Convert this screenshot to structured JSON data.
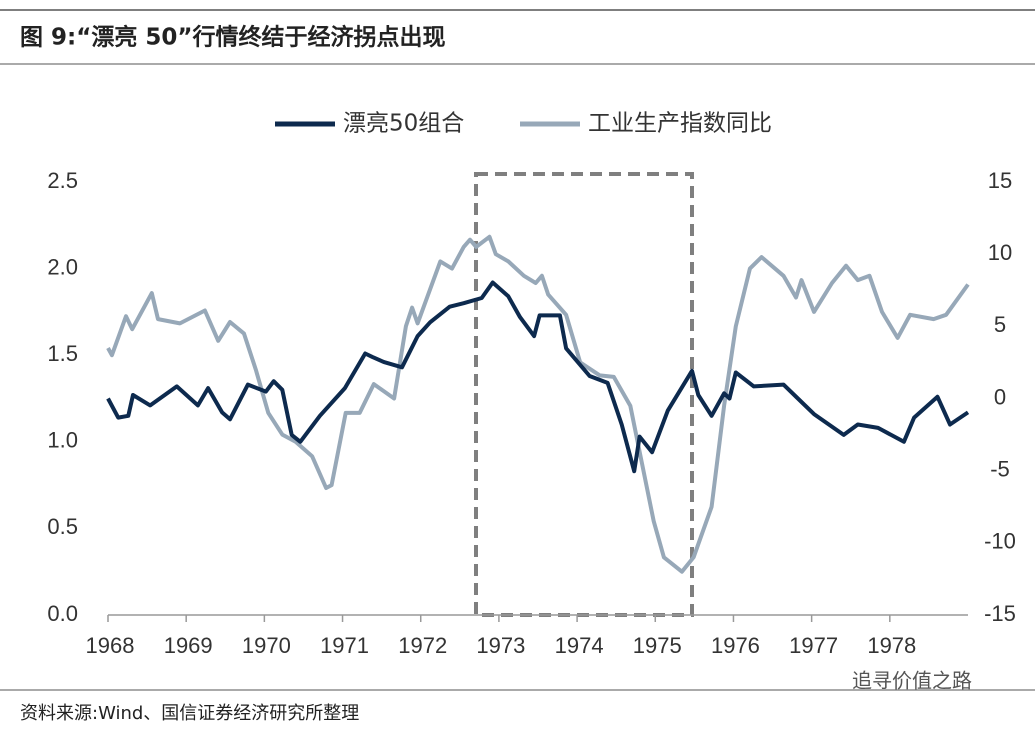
{
  "chart_data": {
    "type": "line",
    "title": "图 9:“漂亮 50”行情终结于经济拐点出现",
    "source": "资料来源:Wind、国信证券经济研究所整理",
    "watermark": "追寻价值之路",
    "xlim": [
      1968,
      1979
    ],
    "xticks": [
      1968,
      1969,
      1970,
      1971,
      1972,
      1973,
      1974,
      1975,
      1976,
      1977,
      1978
    ],
    "ylim": [
      0,
      2.5
    ],
    "yticks": [
      {
        "value": 0,
        "label": "0.0"
      },
      0.5,
      {
        "value": 1,
        "label": "1.0"
      },
      1.5,
      {
        "value": 2,
        "label": "2.0"
      },
      2.5
    ],
    "y2lim": [
      -15,
      15
    ],
    "y2ticks": [
      -15,
      -10,
      -5,
      0,
      5,
      10,
      15
    ],
    "legend": "top",
    "series": [
      {
        "name": "漂亮50组合",
        "color": "#0d2a4e",
        "x": [
          1968.0,
          1968.13,
          1968.26,
          1968.32,
          1968.54,
          1968.88,
          1969.15,
          1969.28,
          1969.46,
          1969.56,
          1969.79,
          1970.02,
          1970.12,
          1970.23,
          1970.35,
          1970.46,
          1970.71,
          1971.03,
          1971.29,
          1971.38,
          1971.53,
          1971.76,
          1971.96,
          1972.12,
          1972.37,
          1972.55,
          1972.78,
          1972.92,
          1973.12,
          1973.27,
          1973.45,
          1973.52,
          1973.78,
          1973.86,
          1974.16,
          1974.39,
          1974.57,
          1974.73,
          1974.8,
          1974.96,
          1975.16,
          1975.47,
          1975.55,
          1975.72,
          1975.88,
          1975.95,
          1976.03,
          1976.26,
          1976.64,
          1976.87,
          1977.03,
          1977.41,
          1977.59,
          1977.85,
          1978.18,
          1978.31,
          1978.61,
          1978.77,
          1979.0
        ],
        "values": [
          1.25,
          1.14,
          1.15,
          1.27,
          1.21,
          1.32,
          1.21,
          1.31,
          1.17,
          1.13,
          1.33,
          1.29,
          1.35,
          1.3,
          1.04,
          1.0,
          1.15,
          1.31,
          1.51,
          1.49,
          1.46,
          1.43,
          1.61,
          1.69,
          1.78,
          1.8,
          1.83,
          1.92,
          1.84,
          1.72,
          1.61,
          1.73,
          1.73,
          1.54,
          1.38,
          1.34,
          1.1,
          0.83,
          1.03,
          0.94,
          1.18,
          1.41,
          1.27,
          1.15,
          1.28,
          1.25,
          1.4,
          1.32,
          1.33,
          1.23,
          1.16,
          1.04,
          1.1,
          1.08,
          1.0,
          1.14,
          1.26,
          1.1,
          1.17
        ]
      },
      {
        "name": "工业生产指数同比",
        "color": "#97a8b8",
        "axis": "y2",
        "x": [
          1968.0,
          1968.05,
          1968.23,
          1968.31,
          1968.56,
          1968.64,
          1968.92,
          1969.24,
          1969.41,
          1969.56,
          1969.74,
          1969.89,
          1970.05,
          1970.23,
          1970.4,
          1970.61,
          1970.79,
          1970.86,
          1971.04,
          1971.22,
          1971.4,
          1971.66,
          1971.81,
          1971.89,
          1971.96,
          1972.25,
          1972.4,
          1972.55,
          1972.63,
          1972.71,
          1972.88,
          1972.96,
          1973.12,
          1973.32,
          1973.47,
          1973.55,
          1973.63,
          1973.86,
          1974.04,
          1974.29,
          1974.47,
          1974.68,
          1974.83,
          1974.98,
          1975.11,
          1975.34,
          1975.49,
          1975.72,
          1975.88,
          1976.03,
          1976.21,
          1976.36,
          1976.64,
          1976.8,
          1976.87,
          1977.03,
          1977.26,
          1977.44,
          1977.59,
          1977.74,
          1977.9,
          1978.1,
          1978.26,
          1978.56,
          1978.72,
          1979.0
        ],
        "values": [
          3.5,
          3.0,
          5.7,
          4.8,
          7.3,
          5.5,
          5.2,
          6.1,
          4.0,
          5.3,
          4.5,
          2.0,
          -1.0,
          -2.5,
          -3.0,
          -4.0,
          -6.2,
          -6.0,
          -1.0,
          -1.0,
          1.0,
          0.0,
          5.0,
          6.3,
          5.2,
          9.5,
          9.0,
          10.5,
          11.0,
          10.5,
          11.2,
          10.0,
          9.5,
          8.5,
          8.0,
          8.5,
          7.2,
          5.8,
          2.5,
          1.6,
          1.5,
          -0.5,
          -4.5,
          -8.5,
          -11.0,
          -12.0,
          -11.0,
          -7.5,
          -0.5,
          5.0,
          9.0,
          9.8,
          8.5,
          7.0,
          8.2,
          6.0,
          8.0,
          9.2,
          8.2,
          8.5,
          6.0,
          4.2,
          5.8,
          5.5,
          5.8,
          7.9
        ]
      }
    ]
  }
}
